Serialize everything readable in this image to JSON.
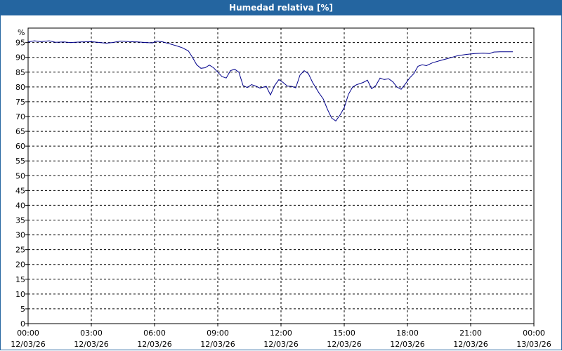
{
  "title": "Humedad relativa [%]",
  "colors": {
    "titlebar": "#2465a0",
    "line": "#00008b",
    "grid": "#000000"
  },
  "chart_data": {
    "type": "line",
    "title": "Humedad relativa [%]",
    "ylabel": "%",
    "xlabel": "",
    "ylim": [
      0,
      95
    ],
    "yticks": [
      0,
      5,
      10,
      15,
      20,
      25,
      30,
      35,
      40,
      45,
      50,
      55,
      60,
      65,
      70,
      75,
      80,
      85,
      90,
      95
    ],
    "xlim_hours": [
      0,
      24
    ],
    "grid": true,
    "xticks": [
      {
        "h": 0,
        "time": "00:00",
        "date": "12/03/26"
      },
      {
        "h": 3,
        "time": "03:00",
        "date": "12/03/26"
      },
      {
        "h": 6,
        "time": "06:00",
        "date": "12/03/26"
      },
      {
        "h": 9,
        "time": "09:00",
        "date": "12/03/26"
      },
      {
        "h": 12,
        "time": "12:00",
        "date": "12/03/26"
      },
      {
        "h": 15,
        "time": "15:00",
        "date": "12/03/26"
      },
      {
        "h": 18,
        "time": "18:00",
        "date": "12/03/26"
      },
      {
        "h": 21,
        "time": "21:00",
        "date": "12/03/26"
      },
      {
        "h": 24,
        "time": "00:00",
        "date": "13/03/26"
      }
    ],
    "series": [
      {
        "points": [
          [
            0.0,
            95.2
          ],
          [
            0.3,
            95.6
          ],
          [
            0.6,
            95.3
          ],
          [
            1.0,
            95.6
          ],
          [
            1.3,
            95.1
          ],
          [
            1.7,
            95.2
          ],
          [
            2.0,
            95.0
          ],
          [
            2.5,
            95.2
          ],
          [
            3.0,
            95.3
          ],
          [
            3.3,
            95.1
          ],
          [
            3.7,
            94.8
          ],
          [
            4.0,
            95.0
          ],
          [
            4.4,
            95.5
          ],
          [
            4.8,
            95.3
          ],
          [
            5.2,
            95.2
          ],
          [
            5.6,
            95.0
          ],
          [
            5.9,
            94.9
          ],
          [
            6.1,
            95.5
          ],
          [
            6.4,
            95.2
          ],
          [
            6.7,
            94.6
          ],
          [
            7.0,
            94.0
          ],
          [
            7.3,
            93.3
          ],
          [
            7.6,
            92.2
          ],
          [
            7.8,
            90.0
          ],
          [
            8.0,
            87.5
          ],
          [
            8.2,
            86.3
          ],
          [
            8.4,
            86.5
          ],
          [
            8.6,
            87.4
          ],
          [
            8.8,
            86.5
          ],
          [
            9.0,
            85.0
          ],
          [
            9.2,
            83.5
          ],
          [
            9.4,
            83.0
          ],
          [
            9.6,
            85.5
          ],
          [
            9.8,
            86.0
          ],
          [
            10.0,
            85.0
          ],
          [
            10.2,
            80.5
          ],
          [
            10.4,
            79.8
          ],
          [
            10.6,
            80.8
          ],
          [
            10.8,
            80.3
          ],
          [
            11.0,
            79.6
          ],
          [
            11.3,
            80.2
          ],
          [
            11.5,
            77.3
          ],
          [
            11.7,
            80.5
          ],
          [
            11.9,
            82.5
          ],
          [
            12.1,
            81.5
          ],
          [
            12.3,
            80.3
          ],
          [
            12.5,
            80.2
          ],
          [
            12.7,
            79.7
          ],
          [
            12.9,
            84.0
          ],
          [
            13.1,
            85.5
          ],
          [
            13.3,
            84.5
          ],
          [
            13.5,
            81.5
          ],
          [
            13.8,
            78.0
          ],
          [
            14.0,
            76.0
          ],
          [
            14.2,
            72.5
          ],
          [
            14.4,
            69.5
          ],
          [
            14.6,
            68.5
          ],
          [
            14.8,
            70.5
          ],
          [
            15.0,
            73.0
          ],
          [
            15.2,
            77.5
          ],
          [
            15.4,
            80.0
          ],
          [
            15.6,
            80.8
          ],
          [
            15.9,
            81.5
          ],
          [
            16.1,
            82.3
          ],
          [
            16.3,
            79.4
          ],
          [
            16.5,
            80.5
          ],
          [
            16.7,
            83.0
          ],
          [
            16.9,
            82.5
          ],
          [
            17.1,
            82.8
          ],
          [
            17.3,
            81.8
          ],
          [
            17.5,
            80.0
          ],
          [
            17.7,
            79.2
          ],
          [
            17.9,
            81.0
          ],
          [
            18.1,
            83.0
          ],
          [
            18.3,
            84.5
          ],
          [
            18.5,
            87.0
          ],
          [
            18.7,
            87.5
          ],
          [
            18.9,
            87.2
          ],
          [
            19.2,
            88.2
          ],
          [
            19.6,
            89.0
          ],
          [
            20.0,
            89.8
          ],
          [
            20.4,
            90.6
          ],
          [
            20.8,
            91.0
          ],
          [
            21.2,
            91.3
          ],
          [
            21.6,
            91.4
          ],
          [
            21.9,
            91.3
          ],
          [
            22.1,
            91.8
          ],
          [
            22.4,
            91.9
          ],
          [
            22.7,
            91.9
          ],
          [
            23.0,
            91.9
          ]
        ]
      }
    ]
  }
}
